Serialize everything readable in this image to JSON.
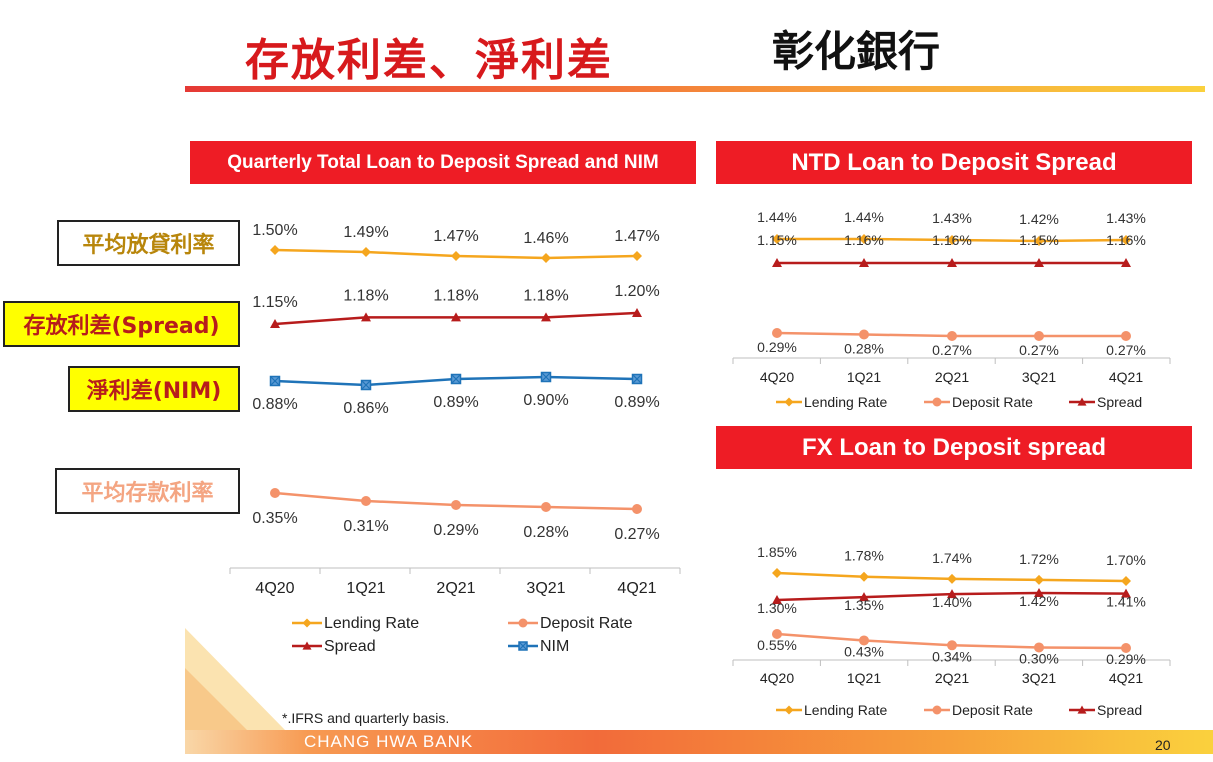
{
  "header": {
    "title": "存放利差、淨利差",
    "bank": "彰化銀行"
  },
  "side_labels": {
    "lending": "平均放貸利率",
    "spread": "存放利差(Spread)",
    "nim": "淨利差(NIM)",
    "deposit": "平均存款利率"
  },
  "footnote": "*.IFRS and quarterly basis.",
  "footer": {
    "bank": "CHANG HWA BANK",
    "page": "20"
  },
  "colors": {
    "lending": "#f5a61e",
    "deposit": "#f4926a",
    "spread": "#b71c1c",
    "nim": "#1f73b8",
    "banner": "#ee1c25"
  },
  "chart_data": [
    {
      "id": "total",
      "type": "line",
      "title": "Quarterly Total Loan to Deposit Spread and NIM",
      "categories": [
        "4Q20",
        "1Q21",
        "2Q21",
        "3Q21",
        "4Q21"
      ],
      "series": [
        {
          "name": "Lending Rate",
          "values": [
            1.5,
            1.49,
            1.47,
            1.46,
            1.47
          ],
          "labels": [
            "1.50%",
            "1.49%",
            "1.47%",
            "1.46%",
            "1.47%"
          ],
          "marker": "diamond",
          "color": "#f5a61e"
        },
        {
          "name": "Deposit Rate",
          "values": [
            0.35,
            0.31,
            0.29,
            0.28,
            0.27
          ],
          "labels": [
            "0.35%",
            "0.31%",
            "0.29%",
            "0.28%",
            "0.27%"
          ],
          "marker": "circle",
          "color": "#f4926a"
        },
        {
          "name": "Spread",
          "values": [
            1.15,
            1.18,
            1.18,
            1.18,
            1.2
          ],
          "labels": [
            "1.15%",
            "1.18%",
            "1.18%",
            "1.18%",
            "1.20%"
          ],
          "marker": "triangle",
          "color": "#b71c1c"
        },
        {
          "name": "NIM",
          "values": [
            0.88,
            0.86,
            0.89,
            0.9,
            0.89
          ],
          "labels": [
            "0.88%",
            "0.86%",
            "0.89%",
            "0.90%",
            "0.89%"
          ],
          "marker": "square",
          "color": "#1f73b8"
        }
      ],
      "legend": "bottom"
    },
    {
      "id": "ntd",
      "type": "line",
      "title": "NTD Loan to Deposit Spread",
      "categories": [
        "4Q20",
        "1Q21",
        "2Q21",
        "3Q21",
        "4Q21"
      ],
      "series": [
        {
          "name": "Lending Rate",
          "values": [
            1.44,
            1.44,
            1.43,
            1.42,
            1.43
          ],
          "labels": [
            "1.44%",
            "1.44%",
            "1.43%",
            "1.42%",
            "1.43%"
          ],
          "marker": "diamond",
          "color": "#f5a61e"
        },
        {
          "name": "Deposit Rate",
          "values": [
            0.29,
            0.28,
            0.27,
            0.27,
            0.27
          ],
          "labels": [
            "0.29%",
            "0.28%",
            "0.27%",
            "0.27%",
            "0.27%"
          ],
          "marker": "circle",
          "color": "#f4926a"
        },
        {
          "name": "Spread",
          "values": [
            1.15,
            1.16,
            1.16,
            1.15,
            1.16
          ],
          "labels": [
            "1.15%",
            "1.16%",
            "1.16%",
            "1.15%",
            "1.16%"
          ],
          "marker": "triangle",
          "color": "#b71c1c"
        }
      ],
      "legend": "bottom"
    },
    {
      "id": "fx",
      "type": "line",
      "title": "FX Loan to Deposit spread",
      "categories": [
        "4Q20",
        "1Q21",
        "2Q21",
        "3Q21",
        "4Q21"
      ],
      "series": [
        {
          "name": "Lending Rate",
          "values": [
            1.85,
            1.78,
            1.74,
            1.72,
            1.7
          ],
          "labels": [
            "1.85%",
            "1.78%",
            "1.74%",
            "1.72%",
            "1.70%"
          ],
          "marker": "diamond",
          "color": "#f5a61e"
        },
        {
          "name": "Deposit Rate",
          "values": [
            0.55,
            0.43,
            0.34,
            0.3,
            0.29
          ],
          "labels": [
            "0.55%",
            "0.43%",
            "0.34%",
            "0.30%",
            "0.29%"
          ],
          "marker": "circle",
          "color": "#f4926a"
        },
        {
          "name": "Spread",
          "values": [
            1.3,
            1.35,
            1.4,
            1.42,
            1.41
          ],
          "labels": [
            "1.30%",
            "1.35%",
            "1.40%",
            "1.42%",
            "1.41%"
          ],
          "marker": "triangle",
          "color": "#b71c1c"
        }
      ],
      "legend": "bottom"
    }
  ]
}
